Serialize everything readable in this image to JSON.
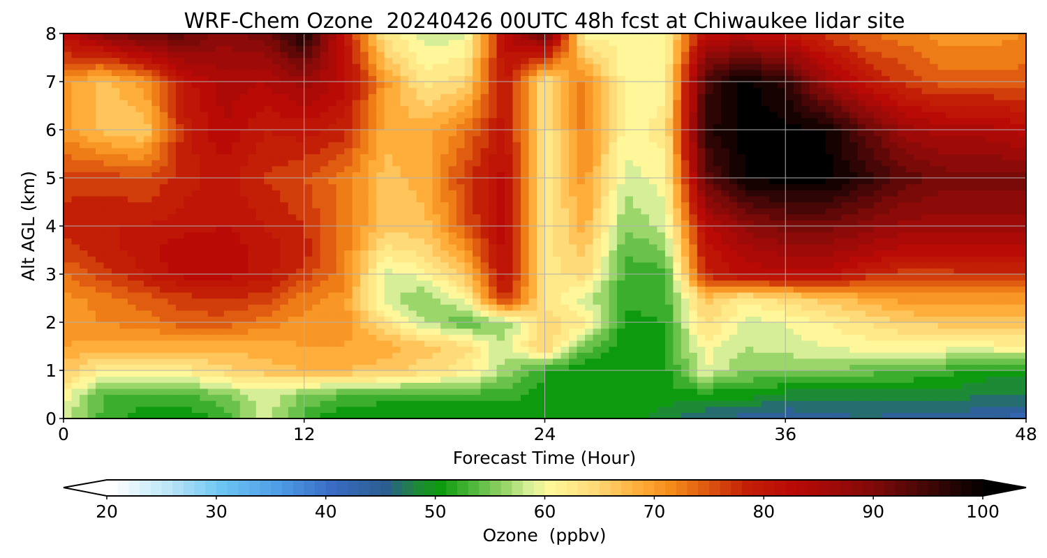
{
  "chart_data": {
    "type": "heatmap",
    "title": "WRF-Chem Ozone  20240426 00UTC 48h fcst at Chiwaukee lidar site",
    "xlabel": "Forecast Time (Hour)",
    "ylabel": "Alt AGL (km)",
    "xlim": [
      0,
      48
    ],
    "ylim": [
      0,
      8
    ],
    "x_ticks": [
      0,
      12,
      24,
      36,
      48
    ],
    "y_ticks": [
      0,
      1,
      2,
      3,
      4,
      5,
      6,
      7,
      8
    ],
    "grid": true,
    "colorbar": {
      "label": "Ozone  (ppbv)",
      "range": [
        20,
        100
      ],
      "ticks": [
        20,
        30,
        40,
        50,
        60,
        70,
        80,
        90,
        100
      ],
      "extend": "both",
      "stops": [
        {
          "v": 20,
          "c": "#ffffff"
        },
        {
          "v": 25,
          "c": "#bde7f7"
        },
        {
          "v": 30,
          "c": "#6cc5f3"
        },
        {
          "v": 35,
          "c": "#4f9ee6"
        },
        {
          "v": 40,
          "c": "#3a6cc6"
        },
        {
          "v": 45,
          "c": "#2b5e8e"
        },
        {
          "v": 48,
          "c": "#1d8a35"
        },
        {
          "v": 50,
          "c": "#0e9a0e"
        },
        {
          "v": 53,
          "c": "#52b83d"
        },
        {
          "v": 56,
          "c": "#9bd66a"
        },
        {
          "v": 58,
          "c": "#d6ee98"
        },
        {
          "v": 60,
          "c": "#fff79a"
        },
        {
          "v": 64,
          "c": "#ffda78"
        },
        {
          "v": 68,
          "c": "#ffae3b"
        },
        {
          "v": 71,
          "c": "#f58c1a"
        },
        {
          "v": 74,
          "c": "#e05c10"
        },
        {
          "v": 78,
          "c": "#c31f06"
        },
        {
          "v": 82,
          "c": "#ba0a06"
        },
        {
          "v": 86,
          "c": "#9e0a08"
        },
        {
          "v": 90,
          "c": "#7a0a08"
        },
        {
          "v": 95,
          "c": "#3a0606"
        },
        {
          "v": 100,
          "c": "#000000"
        }
      ]
    },
    "x_hours": [
      0,
      2,
      4,
      6,
      8,
      10,
      12,
      14,
      16,
      18,
      20,
      22,
      24,
      26,
      28,
      30,
      32,
      34,
      36,
      38,
      40,
      42,
      44,
      46,
      48
    ],
    "z_km": [
      0,
      0.5,
      1,
      1.5,
      2,
      2.5,
      3,
      3.5,
      4,
      5,
      6,
      7,
      8
    ],
    "ozone_ppbv": [
      [
        58,
        52,
        50,
        50,
        51,
        59,
        52,
        49,
        49,
        49,
        49,
        49,
        50,
        50,
        50,
        48,
        45,
        44,
        43,
        44,
        45,
        44,
        44,
        43,
        42
      ],
      [
        60,
        53,
        52,
        52,
        55,
        58,
        55,
        53,
        52,
        52,
        52,
        52,
        50,
        50,
        51,
        50,
        50,
        50,
        48,
        48,
        48,
        48,
        48,
        47,
        47
      ],
      [
        66,
        61,
        60,
        62,
        64,
        66,
        67,
        67,
        66,
        64,
        62,
        56,
        51,
        49,
        49,
        50,
        59,
        55,
        55,
        55,
        54,
        53,
        52,
        50,
        50
      ],
      [
        69,
        68,
        68,
        68,
        68,
        68,
        69,
        69,
        68,
        66,
        64,
        57,
        66,
        54,
        50,
        51,
        60,
        57,
        58,
        59,
        60,
        60,
        60,
        60,
        61
      ],
      [
        70,
        71,
        72,
        74,
        74,
        72,
        70,
        70,
        63,
        57,
        53,
        56,
        64,
        62,
        50,
        51,
        64,
        58,
        59,
        61,
        63,
        65,
        66,
        66,
        66
      ],
      [
        70,
        72,
        74,
        76,
        77,
        76,
        72,
        70,
        58,
        55,
        60,
        78,
        63,
        58,
        52,
        52,
        66,
        62,
        64,
        66,
        68,
        70,
        70,
        70,
        70
      ],
      [
        73,
        76,
        79,
        82,
        82,
        80,
        76,
        72,
        58,
        60,
        66,
        81,
        62,
        64,
        52,
        52,
        78,
        82,
        82,
        82,
        78,
        76,
        76,
        77,
        77
      ],
      [
        76,
        78,
        80,
        83,
        83,
        80,
        78,
        72,
        62,
        64,
        70,
        82,
        62,
        66,
        53,
        55,
        80,
        84,
        86,
        86,
        84,
        82,
        82,
        82,
        82
      ],
      [
        78,
        79,
        79,
        80,
        81,
        79,
        77,
        72,
        66,
        66,
        74,
        83,
        61,
        68,
        55,
        58,
        82,
        88,
        90,
        90,
        88,
        86,
        86,
        86,
        86
      ],
      [
        76,
        76,
        75,
        78,
        80,
        77,
        75,
        72,
        66,
        68,
        76,
        82,
        62,
        70,
        58,
        60,
        92,
        99,
        100,
        100,
        96,
        92,
        90,
        90,
        90
      ],
      [
        70,
        66,
        65,
        78,
        83,
        79,
        80,
        78,
        68,
        68,
        72,
        80,
        62,
        72,
        60,
        62,
        96,
        100,
        100,
        99,
        92,
        86,
        84,
        84,
        82
      ],
      [
        70,
        66,
        70,
        80,
        84,
        83,
        86,
        82,
        70,
        62,
        64,
        80,
        62,
        72,
        60,
        60,
        94,
        100,
        96,
        86,
        80,
        76,
        74,
        74,
        74
      ],
      [
        82,
        88,
        92,
        92,
        88,
        90,
        98,
        80,
        62,
        58,
        58,
        82,
        92,
        60,
        60,
        60,
        82,
        82,
        80,
        76,
        73,
        72,
        70,
        70,
        71
      ]
    ]
  }
}
